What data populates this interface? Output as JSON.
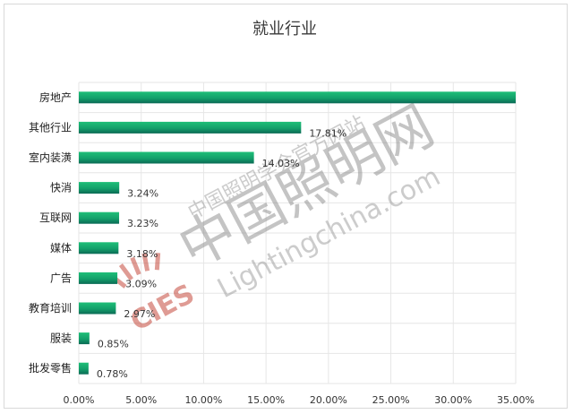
{
  "chart_data": {
    "type": "bar",
    "orientation": "horizontal",
    "title": "就业行业",
    "categories": [
      "房地产",
      "其他行业",
      "室内装潢",
      "快消",
      "互联网",
      "媒体",
      "广告",
      "教育培训",
      "服装",
      "批发零售"
    ],
    "values": [
      35.0,
      17.81,
      14.03,
      3.24,
      3.23,
      3.18,
      3.09,
      2.97,
      0.85,
      0.78
    ],
    "data_labels": [
      null,
      "17.81%",
      "14.03%",
      "3.24%",
      "3.23%",
      "3.18%",
      "3.09%",
      "2.97%",
      "0.85%",
      "0.78%"
    ],
    "x_ticks": [
      "0.00%",
      "5.00%",
      "10.00%",
      "15.00%",
      "20.00%",
      "25.00%",
      "30.00%",
      "35.00%"
    ],
    "xlim": [
      0,
      35
    ],
    "grid": true,
    "bar_color": "#16a86a",
    "bar_color_dark": "#0e6e58"
  },
  "watermark": {
    "site_cn": "中国照明学会官方网站",
    "brand_cn": "中国照明网",
    "url": "Lightingchina.com",
    "logo_text": "CIES",
    "color": "#8a8a8a",
    "logo_color": "#c0392b"
  }
}
